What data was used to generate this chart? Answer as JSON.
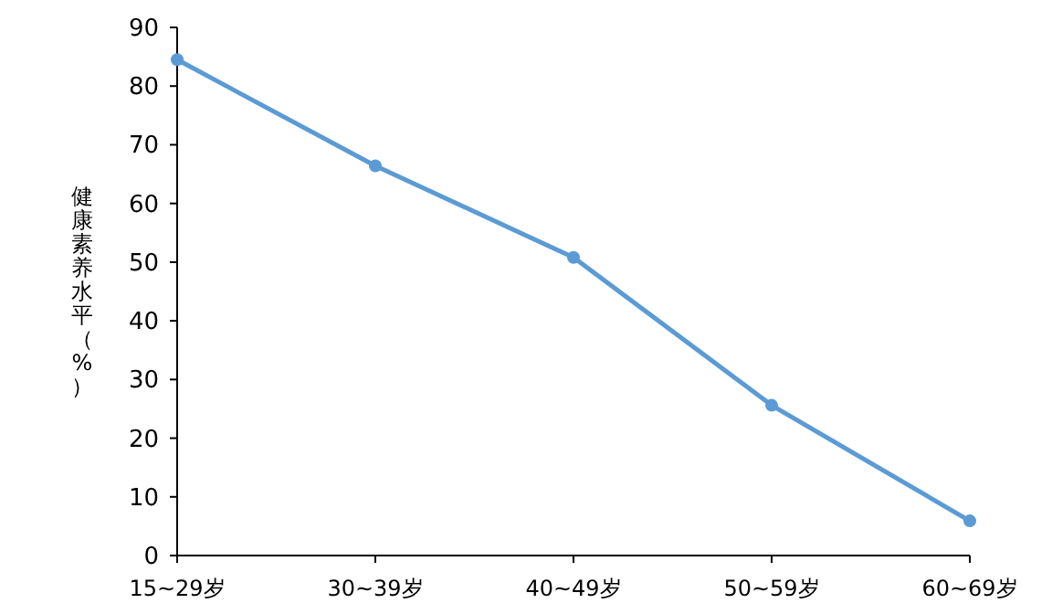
{
  "chart_data": {
    "type": "line",
    "ylabel": "健康素养水平（%）",
    "categories": [
      "15~29岁",
      "30~39岁",
      "40~49岁",
      "50~59岁",
      "60~69岁"
    ],
    "series": [
      {
        "color": "#5b9bd5",
        "values": [
          84.5,
          66.4,
          50.8,
          25.6,
          5.9
        ]
      }
    ],
    "ylim": [
      0,
      90
    ],
    "yticks": [
      0,
      10,
      20,
      30,
      40,
      50,
      60,
      70,
      80,
      90
    ],
    "marker": "circle",
    "line_style": "solid",
    "grid": false
  }
}
